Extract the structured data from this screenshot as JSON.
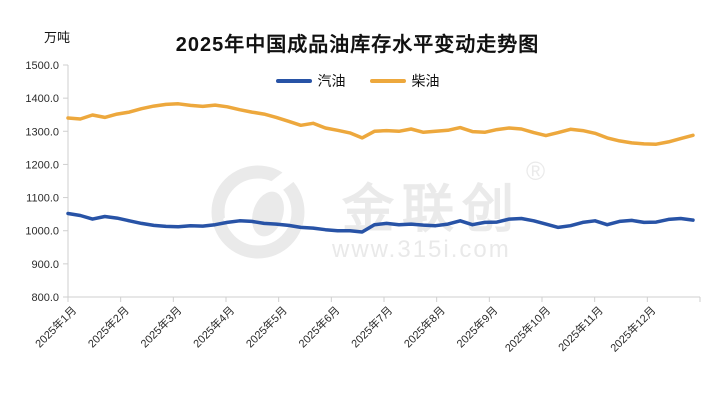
{
  "title": "2025年中国成品油库存水平变动走势图",
  "unit_label": "万吨",
  "legend": [
    {
      "label": "汽油",
      "color": "#2853A6"
    },
    {
      "label": "柴油",
      "color": "#EDA83D"
    }
  ],
  "watermark": {
    "logo_icon": "jinlianchuang-circle-logo",
    "brand_text": "金联创",
    "registered_mark": "®",
    "url": "www.315i.com"
  },
  "chart_data": {
    "type": "line",
    "title": "2025年中国成品油库存水平变动走势图",
    "ylabel": "万吨",
    "xlabel": "",
    "ylim": [
      800,
      1500
    ],
    "ytick_step": 100,
    "ytick_labels": [
      "1500.0",
      "1400.0",
      "1300.0",
      "1200.0",
      "1100.0",
      "1000.0",
      "900.0",
      "800.0"
    ],
    "grid": false,
    "legend_position": "top",
    "axis_color": "#CFCFCF",
    "x_unit": "weekly points across 12 months",
    "categories": [
      "2025年1月",
      "2025年2月",
      "2025年3月",
      "2025年4月",
      "2025年5月",
      "2025年6月",
      "2025年7月",
      "2025年8月",
      "2025年9月",
      "2025年10月",
      "2025年11月",
      "2025年12月"
    ],
    "series": [
      {
        "name": "汽油",
        "color": "#2853A6",
        "stroke_width": 3.5,
        "values": [
          1052,
          1046,
          1035,
          1043,
          1038,
          1030,
          1022,
          1016,
          1013,
          1012,
          1015,
          1014,
          1018,
          1025,
          1030,
          1028,
          1022,
          1020,
          1016,
          1010,
          1008,
          1003,
          1000,
          1000,
          996,
          1018,
          1022,
          1018,
          1020,
          1017,
          1015,
          1020,
          1030,
          1018,
          1025,
          1026,
          1035,
          1037,
          1030,
          1020,
          1010,
          1015,
          1025,
          1030,
          1018,
          1028,
          1031,
          1025,
          1026,
          1034,
          1037,
          1032
        ]
      },
      {
        "name": "柴油",
        "color": "#EDA83D",
        "stroke_width": 3.5,
        "values": [
          1340,
          1337,
          1349,
          1342,
          1352,
          1358,
          1368,
          1376,
          1381,
          1383,
          1378,
          1375,
          1379,
          1374,
          1365,
          1358,
          1352,
          1342,
          1330,
          1318,
          1324,
          1310,
          1303,
          1295,
          1280,
          1300,
          1302,
          1300,
          1307,
          1297,
          1300,
          1303,
          1311,
          1299,
          1297,
          1305,
          1310,
          1307,
          1296,
          1287,
          1296,
          1306,
          1302,
          1294,
          1280,
          1271,
          1265,
          1262,
          1261,
          1268,
          1278,
          1288
        ]
      }
    ]
  }
}
